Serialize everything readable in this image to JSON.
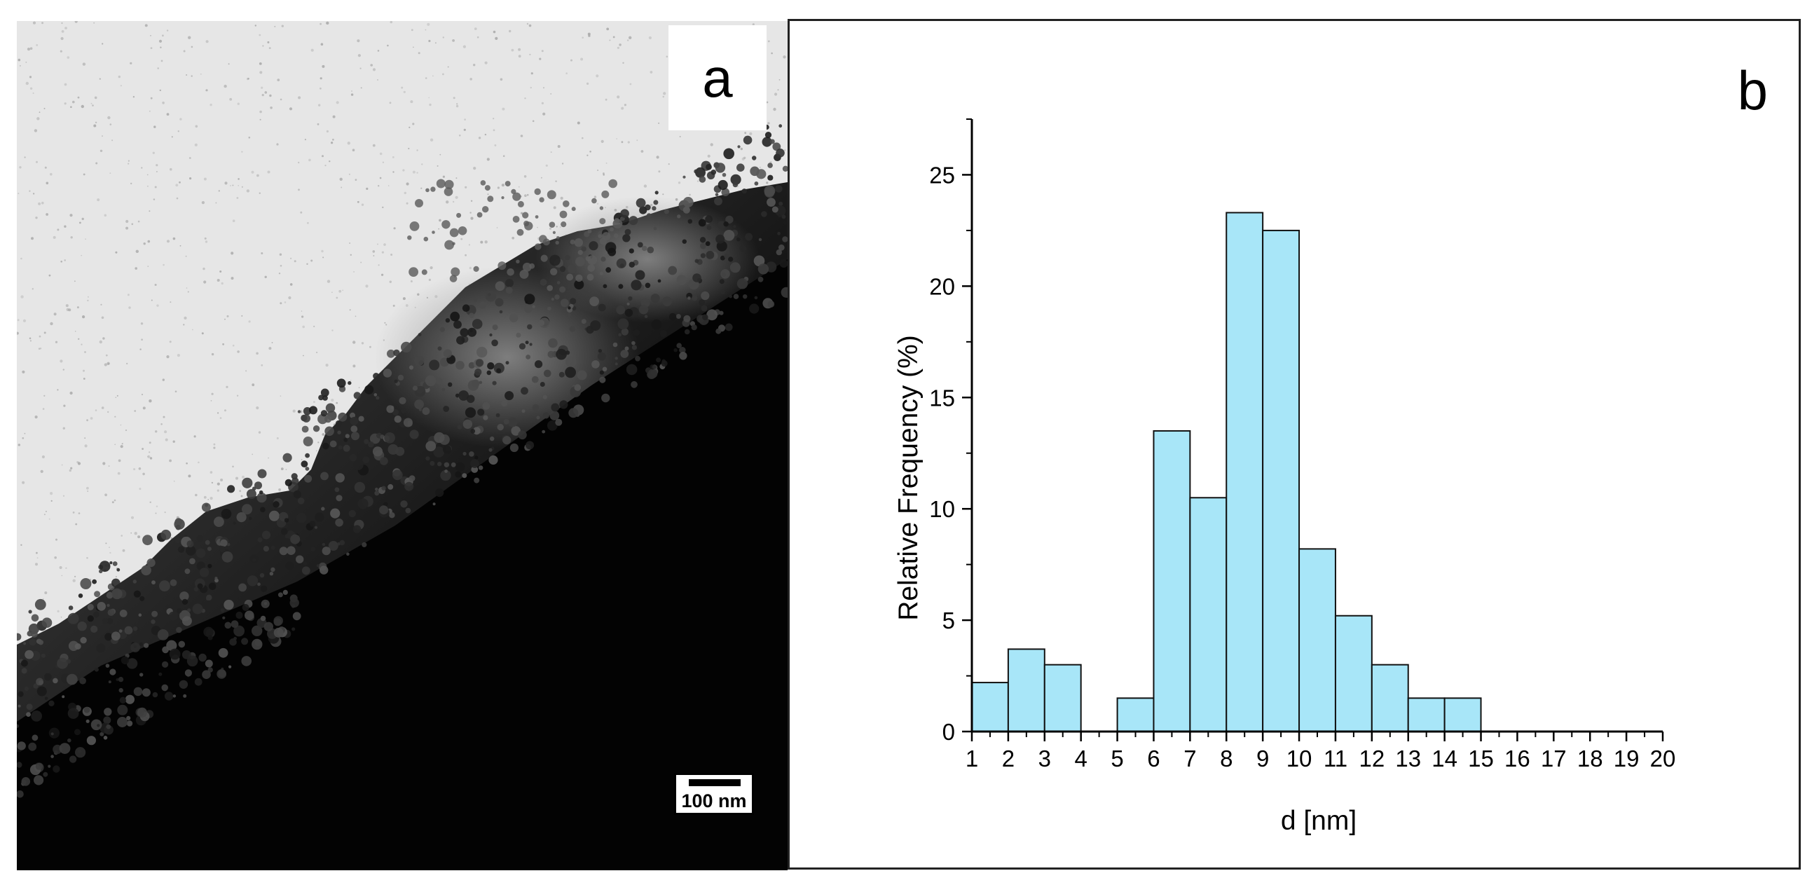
{
  "panels": {
    "a": {
      "label": "a",
      "scale_bar": "100 nm"
    },
    "b": {
      "label": "b"
    }
  },
  "chart_data": {
    "type": "bar",
    "title": "",
    "xlabel": "d [nm]",
    "ylabel": "Relative Frequency (%)",
    "xlim": [
      1,
      20
    ],
    "ylim": [
      0,
      27.5
    ],
    "x_ticks": [
      1,
      2,
      3,
      4,
      5,
      6,
      7,
      8,
      9,
      10,
      11,
      12,
      13,
      14,
      15,
      16,
      17,
      18,
      19,
      20
    ],
    "y_ticks": [
      0,
      5,
      10,
      15,
      20,
      25
    ],
    "bin_width": 1,
    "bins": [
      {
        "start": 1,
        "end": 2,
        "value": 2.2
      },
      {
        "start": 2,
        "end": 3,
        "value": 3.7
      },
      {
        "start": 3,
        "end": 4,
        "value": 3.0
      },
      {
        "start": 4,
        "end": 5,
        "value": 0
      },
      {
        "start": 5,
        "end": 6,
        "value": 1.5
      },
      {
        "start": 6,
        "end": 7,
        "value": 13.5
      },
      {
        "start": 7,
        "end": 8,
        "value": 10.5
      },
      {
        "start": 8,
        "end": 9,
        "value": 23.3
      },
      {
        "start": 9,
        "end": 10,
        "value": 22.5
      },
      {
        "start": 10,
        "end": 11,
        "value": 8.2
      },
      {
        "start": 11,
        "end": 12,
        "value": 5.2
      },
      {
        "start": 12,
        "end": 13,
        "value": 3.0
      },
      {
        "start": 13,
        "end": 14,
        "value": 1.5
      },
      {
        "start": 14,
        "end": 15,
        "value": 1.5
      }
    ],
    "bar_color": "#a8e6f8",
    "bar_edge_color": "#111111",
    "grid": false,
    "legend": "none"
  }
}
